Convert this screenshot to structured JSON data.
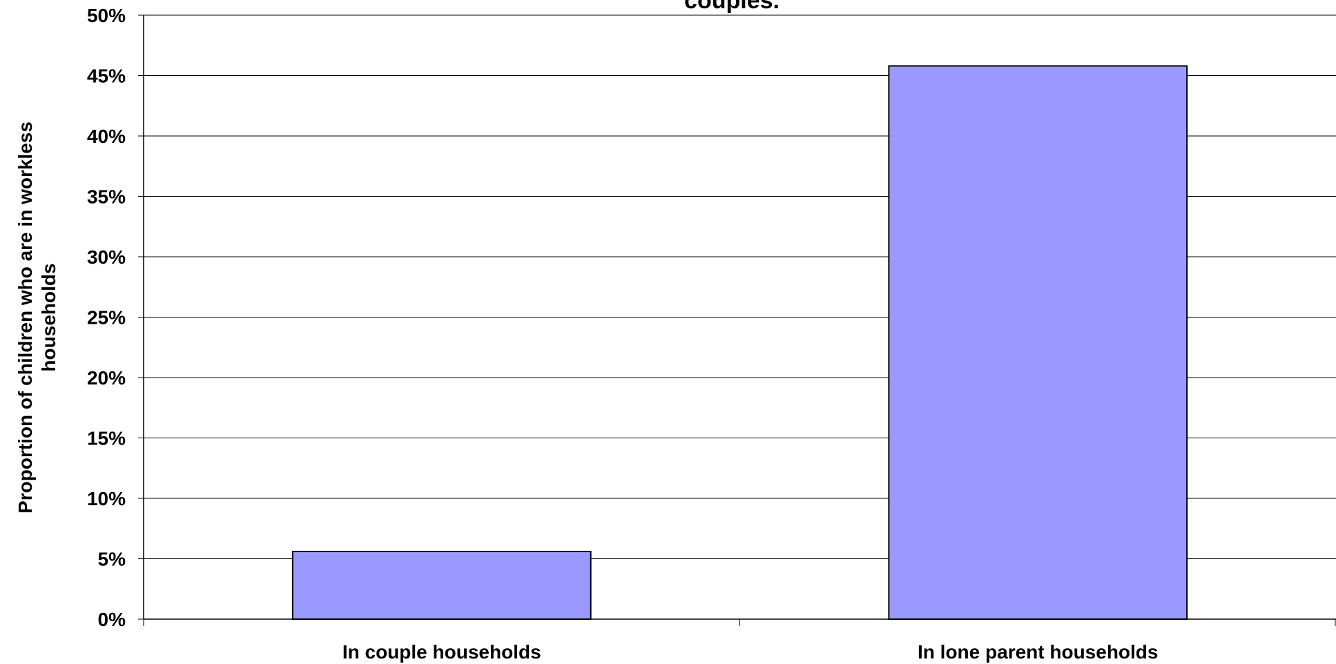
{
  "chart_data": {
    "type": "bar",
    "title": "couples.",
    "categories": [
      "In couple households",
      "In lone parent households"
    ],
    "values": [
      0.056,
      0.458
    ],
    "ylabel_lines": [
      "Proportion of children who are in workless",
      "households"
    ],
    "xlabel": "",
    "ylim": [
      0,
      0.5
    ],
    "yticks": [
      0,
      0.05,
      0.1,
      0.15,
      0.2,
      0.25,
      0.3,
      0.35,
      0.4,
      0.45,
      0.5
    ],
    "ytick_labels": [
      "0%",
      "5%",
      "10%",
      "15%",
      "20%",
      "25%",
      "30%",
      "35%",
      "40%",
      "45%",
      "50%"
    ],
    "grid": true,
    "legend": "none",
    "colors": {
      "bar_fill": "#9999ff",
      "bar_stroke": "#000000",
      "grid": "#000000"
    }
  }
}
